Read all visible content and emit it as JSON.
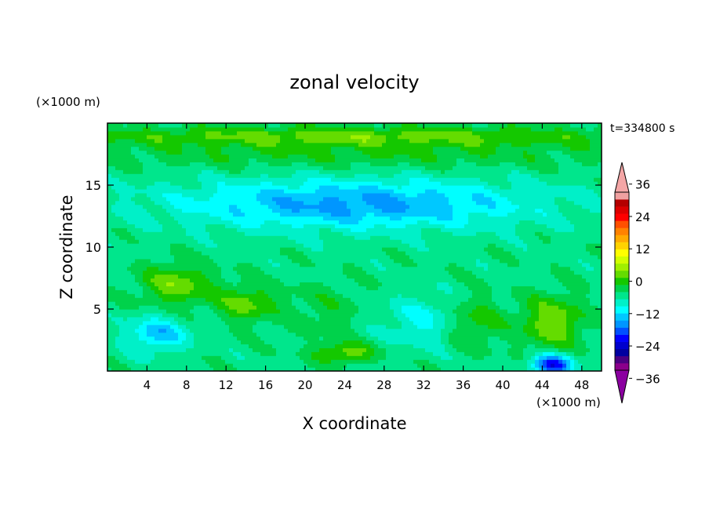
{
  "chart_data": {
    "type": "heatmap",
    "title": "zonal velocity",
    "xlabel": "X coordinate",
    "ylabel": "Z coordinate",
    "x_unit": "(×1000 m)",
    "y_unit": "(×1000 m)",
    "time_label": "t=334800 s",
    "xlim": [
      0,
      50
    ],
    "ylim": [
      0,
      20
    ],
    "x_ticks": [
      4,
      8,
      12,
      16,
      20,
      24,
      28,
      32,
      36,
      40,
      44,
      48
    ],
    "y_ticks": [
      5,
      10,
      15
    ],
    "colorbar": {
      "levels": [
        -42,
        -39,
        -36,
        -33,
        -30,
        -27,
        -24,
        -21,
        -18,
        -15,
        -12,
        -9,
        -6,
        -3,
        0,
        3,
        6,
        9,
        12,
        15,
        18,
        21,
        24,
        27,
        30,
        33,
        36,
        39,
        42
      ],
      "tick_labels": [
        36,
        24,
        12,
        0,
        -12,
        -24,
        -36
      ],
      "colors": [
        "#8b008b",
        "#4b0082",
        "#0000a0",
        "#0000cd",
        "#0000ff",
        "#0050ff",
        "#0096ff",
        "#00c8ff",
        "#00ffff",
        "#00f0c8",
        "#00e68c",
        "#00d24b",
        "#14c800",
        "#64dc00",
        "#a0f000",
        "#d2ff00",
        "#ffff00",
        "#ffd200",
        "#ffaa00",
        "#ff8200",
        "#ff5000",
        "#ff0000",
        "#dc0000",
        "#b40000",
        "#f0a0a0"
      ],
      "over_color": "#f4a6a6",
      "under_color": "#8b00a0"
    },
    "field_features": [
      {
        "x": 7,
        "z": 7,
        "value": 9,
        "sx": 3.5,
        "sz": 1.7
      },
      {
        "x": 14,
        "z": 5.5,
        "value": 8,
        "sx": 3,
        "sz": 1.5
      },
      {
        "x": 22,
        "z": 5,
        "value": 3,
        "sx": 4,
        "sz": 2
      },
      {
        "x": 32,
        "z": 4,
        "value": -6,
        "sx": 4,
        "sz": 2
      },
      {
        "x": 37,
        "z": 4,
        "value": 6,
        "sx": 3,
        "sz": 2
      },
      {
        "x": 45,
        "z": 4,
        "value": 10,
        "sx": 3,
        "sz": 2
      },
      {
        "x": 5,
        "z": 3,
        "value": -10,
        "sx": 3,
        "sz": 1.4
      },
      {
        "x": 45,
        "z": 0.5,
        "value": -20,
        "sx": 2,
        "sz": 0.8
      },
      {
        "x": 24,
        "z": 1.5,
        "value": 9,
        "sx": 3,
        "sz": 0.8
      },
      {
        "x": 25,
        "z": 13.5,
        "value": -12,
        "sx": 18,
        "sz": 2
      },
      {
        "x": 25,
        "z": 17.5,
        "value": 4,
        "sx": 30,
        "sz": 1.2
      },
      {
        "x": 25,
        "z": 19,
        "value": 8,
        "sx": 30,
        "sz": 0.8
      }
    ]
  }
}
